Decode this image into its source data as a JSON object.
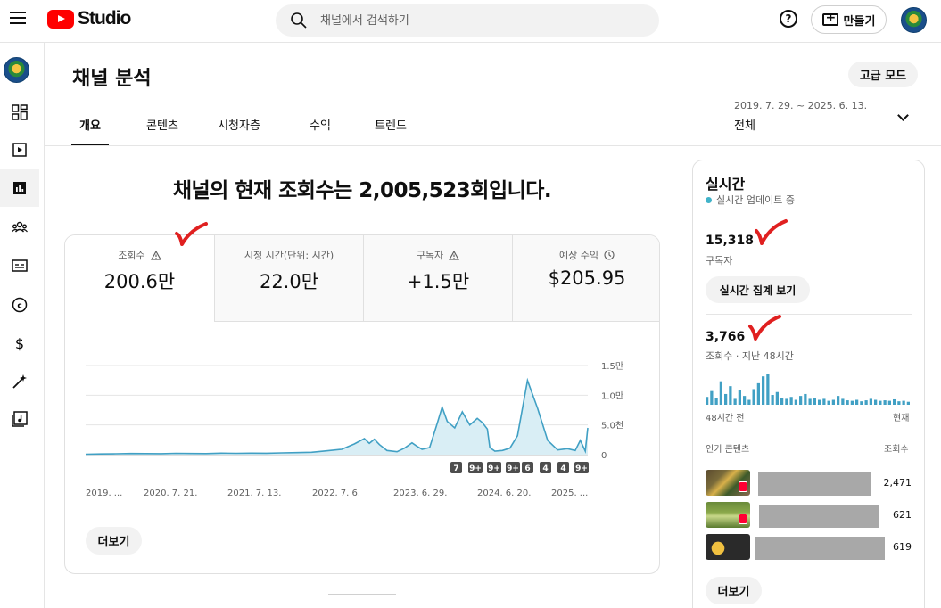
{
  "header": {
    "logo_text": "Studio",
    "search_placeholder": "채널에서 검색하기",
    "help_glyph": "?",
    "create_label": "만들기"
  },
  "page": {
    "title": "채널 분석",
    "advanced_mode_label": "고급 모드",
    "tabs": [
      "개요",
      "콘텐츠",
      "시청자층",
      "수익",
      "트렌드"
    ],
    "date_range": "2019. 7. 29. ~ 2025. 6. 13.",
    "period_label": "전체",
    "headline": "채널의 현재 조회수는 2,005,523회입니다."
  },
  "metrics": [
    {
      "label": "조회수",
      "value": "200.6만",
      "icon": "warning-icon"
    },
    {
      "label": "시청 시간(단위: 시간)",
      "value": "22.0만",
      "icon": ""
    },
    {
      "label": "구독자",
      "value": "+1.5만",
      "icon": "warning-icon"
    },
    {
      "label": "예상 수익",
      "value": "$205.95",
      "icon": "clock-icon"
    }
  ],
  "chart_data": {
    "type": "area",
    "title": "",
    "xlabel": "",
    "ylabel": "",
    "x_tick_labels": [
      "2019. ...",
      "2020. 7. 21.",
      "2021. 7. 13.",
      "2022. 7. 6.",
      "2023. 6. 29.",
      "2024. 6. 20.",
      "2025. ..."
    ],
    "y_tick_labels": [
      "0",
      "5.0천",
      "1.0만",
      "1.5만"
    ],
    "ylim": [
      0,
      15000
    ],
    "grid": true,
    "series": [
      {
        "x": [
          0.0,
          0.03,
          0.06,
          0.09,
          0.12,
          0.15,
          0.18,
          0.21,
          0.24,
          0.27,
          0.3,
          0.33,
          0.36,
          0.39,
          0.42,
          0.45,
          0.48,
          0.51,
          0.535,
          0.555,
          0.565,
          0.575,
          0.585,
          0.6,
          0.62,
          0.635,
          0.65,
          0.66,
          0.67,
          0.685,
          0.7,
          0.71,
          0.72,
          0.735,
          0.75,
          0.765,
          0.78,
          0.79,
          0.8,
          0.805,
          0.815,
          0.83,
          0.845,
          0.86,
          0.88,
          0.9,
          0.92,
          0.94,
          0.96,
          0.975,
          0.985,
          0.995,
          1.0
        ],
        "values": [
          80,
          120,
          150,
          200,
          180,
          160,
          220,
          200,
          180,
          250,
          220,
          260,
          240,
          300,
          350,
          400,
          650,
          900,
          1800,
          2700,
          1900,
          2600,
          1700,
          700,
          500,
          1100,
          2000,
          1400,
          900,
          1200,
          5200,
          8000,
          5600,
          4500,
          7200,
          5000,
          6100,
          5400,
          4300,
          1200,
          600,
          700,
          1100,
          3200,
          12500,
          7800,
          2400,
          800,
          1000,
          700,
          2400,
          600,
          4500
        ]
      }
    ],
    "x_domain_note": "",
    "badges": [
      "7",
      "9+",
      "9+",
      "9+",
      "6",
      "4",
      "4",
      "9+"
    ]
  },
  "overview_more_label": "더보기",
  "realtime": {
    "title": "실시간",
    "live_label": "실시간 업데이트 중",
    "subscribers_value": "15,318",
    "subscribers_label": "구독자",
    "aggregate_button": "실시간 집계 보기",
    "views_value": "3,766",
    "views_label": "조회수 · 지난 48시간",
    "axis_left": "48시간 전",
    "axis_right": "현재",
    "bar_values": [
      16,
      28,
      14,
      48,
      22,
      38,
      12,
      30,
      18,
      10,
      32,
      44,
      58,
      62,
      20,
      26,
      14,
      12,
      16,
      10,
      18,
      22,
      12,
      14,
      10,
      12,
      8,
      10,
      18,
      12,
      9,
      8,
      10,
      7,
      9,
      12,
      10,
      8,
      9,
      8,
      11,
      7,
      8,
      6
    ],
    "top_content_label": "인기 콘텐츠",
    "views_col_label": "조회수",
    "top_content": [
      {
        "count": "2,471"
      },
      {
        "count": "621"
      },
      {
        "count": "619"
      }
    ],
    "more_label": "더보기"
  },
  "colors": {
    "chart_line": "#41a0c4",
    "chart_fill": "#d9eef5",
    "brand_red": "#ff0000",
    "check_red": "#e02020",
    "badge_dark": "#4d4d4d"
  }
}
